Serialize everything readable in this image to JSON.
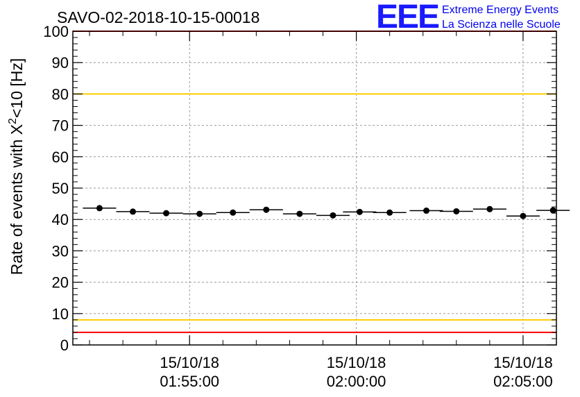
{
  "chart_data": {
    "type": "scatter",
    "title": "SAVO-02-2018-10-15-00018",
    "ylabel": "Rate of events with X",
    "ylabel_sup": "2",
    "ylabel_tail": "<10 [Hz]",
    "xlabel": "",
    "ylim": [
      0,
      100
    ],
    "y_ticks": [
      0,
      10,
      20,
      30,
      40,
      50,
      60,
      70,
      80,
      90,
      100
    ],
    "y_tick_labels": [
      "0",
      "10",
      "20",
      "30",
      "40",
      "50",
      "60",
      "70",
      "80",
      "90",
      "100"
    ],
    "x_range_minutes": [
      -8.5,
      6.0
    ],
    "x_major_ticks": [
      {
        "t": -5,
        "date": "15/10/18",
        "time": "01:55:00"
      },
      {
        "t": 0,
        "date": "15/10/18",
        "time": "02:00:00"
      },
      {
        "t": 5,
        "date": "15/10/18",
        "time": "02:05:00"
      }
    ],
    "grid": true,
    "points": [
      {
        "t": -7.7,
        "y": 43.6
      },
      {
        "t": -6.7,
        "y": 42.5
      },
      {
        "t": -5.7,
        "y": 42.0
      },
      {
        "t": -4.7,
        "y": 41.8
      },
      {
        "t": -3.7,
        "y": 42.2
      },
      {
        "t": -2.7,
        "y": 43.1
      },
      {
        "t": -1.7,
        "y": 41.8
      },
      {
        "t": -0.7,
        "y": 41.3
      },
      {
        "t": 0.1,
        "y": 42.4
      },
      {
        "t": 1.0,
        "y": 42.2
      },
      {
        "t": 2.1,
        "y": 42.8
      },
      {
        "t": 3.0,
        "y": 42.6
      },
      {
        "t": 4.0,
        "y": 43.3
      },
      {
        "t": 5.0,
        "y": 41.1
      },
      {
        "t": 5.9,
        "y": 42.9
      }
    ],
    "bin_half_width_minutes": 0.5,
    "reference_lines": [
      {
        "y": 100,
        "color": "#ff0000",
        "name": "upper-red-limit"
      },
      {
        "y": 80,
        "color": "#ffcc00",
        "name": "upper-yellow-limit"
      },
      {
        "y": 8,
        "color": "#ffcc00",
        "name": "lower-yellow-limit"
      },
      {
        "y": 4,
        "color": "#ff0000",
        "name": "lower-red-limit"
      }
    ]
  },
  "logo": {
    "mark": "EEE",
    "line1": "Extreme Energy Events",
    "line2": "La Scienza nelle Scuole",
    "color": "#0000ee"
  }
}
